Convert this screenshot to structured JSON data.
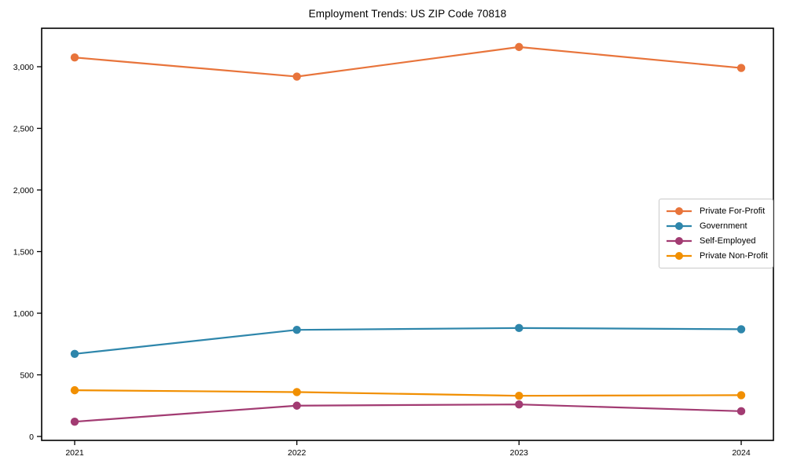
{
  "chart_data": {
    "type": "line",
    "title": "Employment Trends: US ZIP Code 70818",
    "categories": [
      "2021",
      "2022",
      "2023",
      "2024"
    ],
    "series": [
      {
        "name": "Private For-Profit",
        "color": "#E8743B",
        "values": [
          3075,
          2920,
          3160,
          2990
        ]
      },
      {
        "name": "Government",
        "color": "#2E86AB",
        "values": [
          670,
          865,
          880,
          870
        ]
      },
      {
        "name": "Self-Employed",
        "color": "#A23B72",
        "values": [
          120,
          250,
          260,
          205
        ]
      },
      {
        "name": "Private Non-Profit",
        "color": "#F18F01",
        "values": [
          375,
          360,
          330,
          335
        ]
      }
    ],
    "yticks": [
      0,
      500,
      1000,
      1500,
      2000,
      2500,
      3000
    ],
    "ytick_labels": [
      "0",
      "500",
      "1,000",
      "1,500",
      "2,000",
      "2,500",
      "3,000"
    ],
    "xlabel": "",
    "ylabel": "",
    "ylim": [
      -35,
      3315
    ],
    "grid": false,
    "legend_position": "center-right",
    "axis_color": "#000000",
    "background_color": "#ffffff"
  }
}
